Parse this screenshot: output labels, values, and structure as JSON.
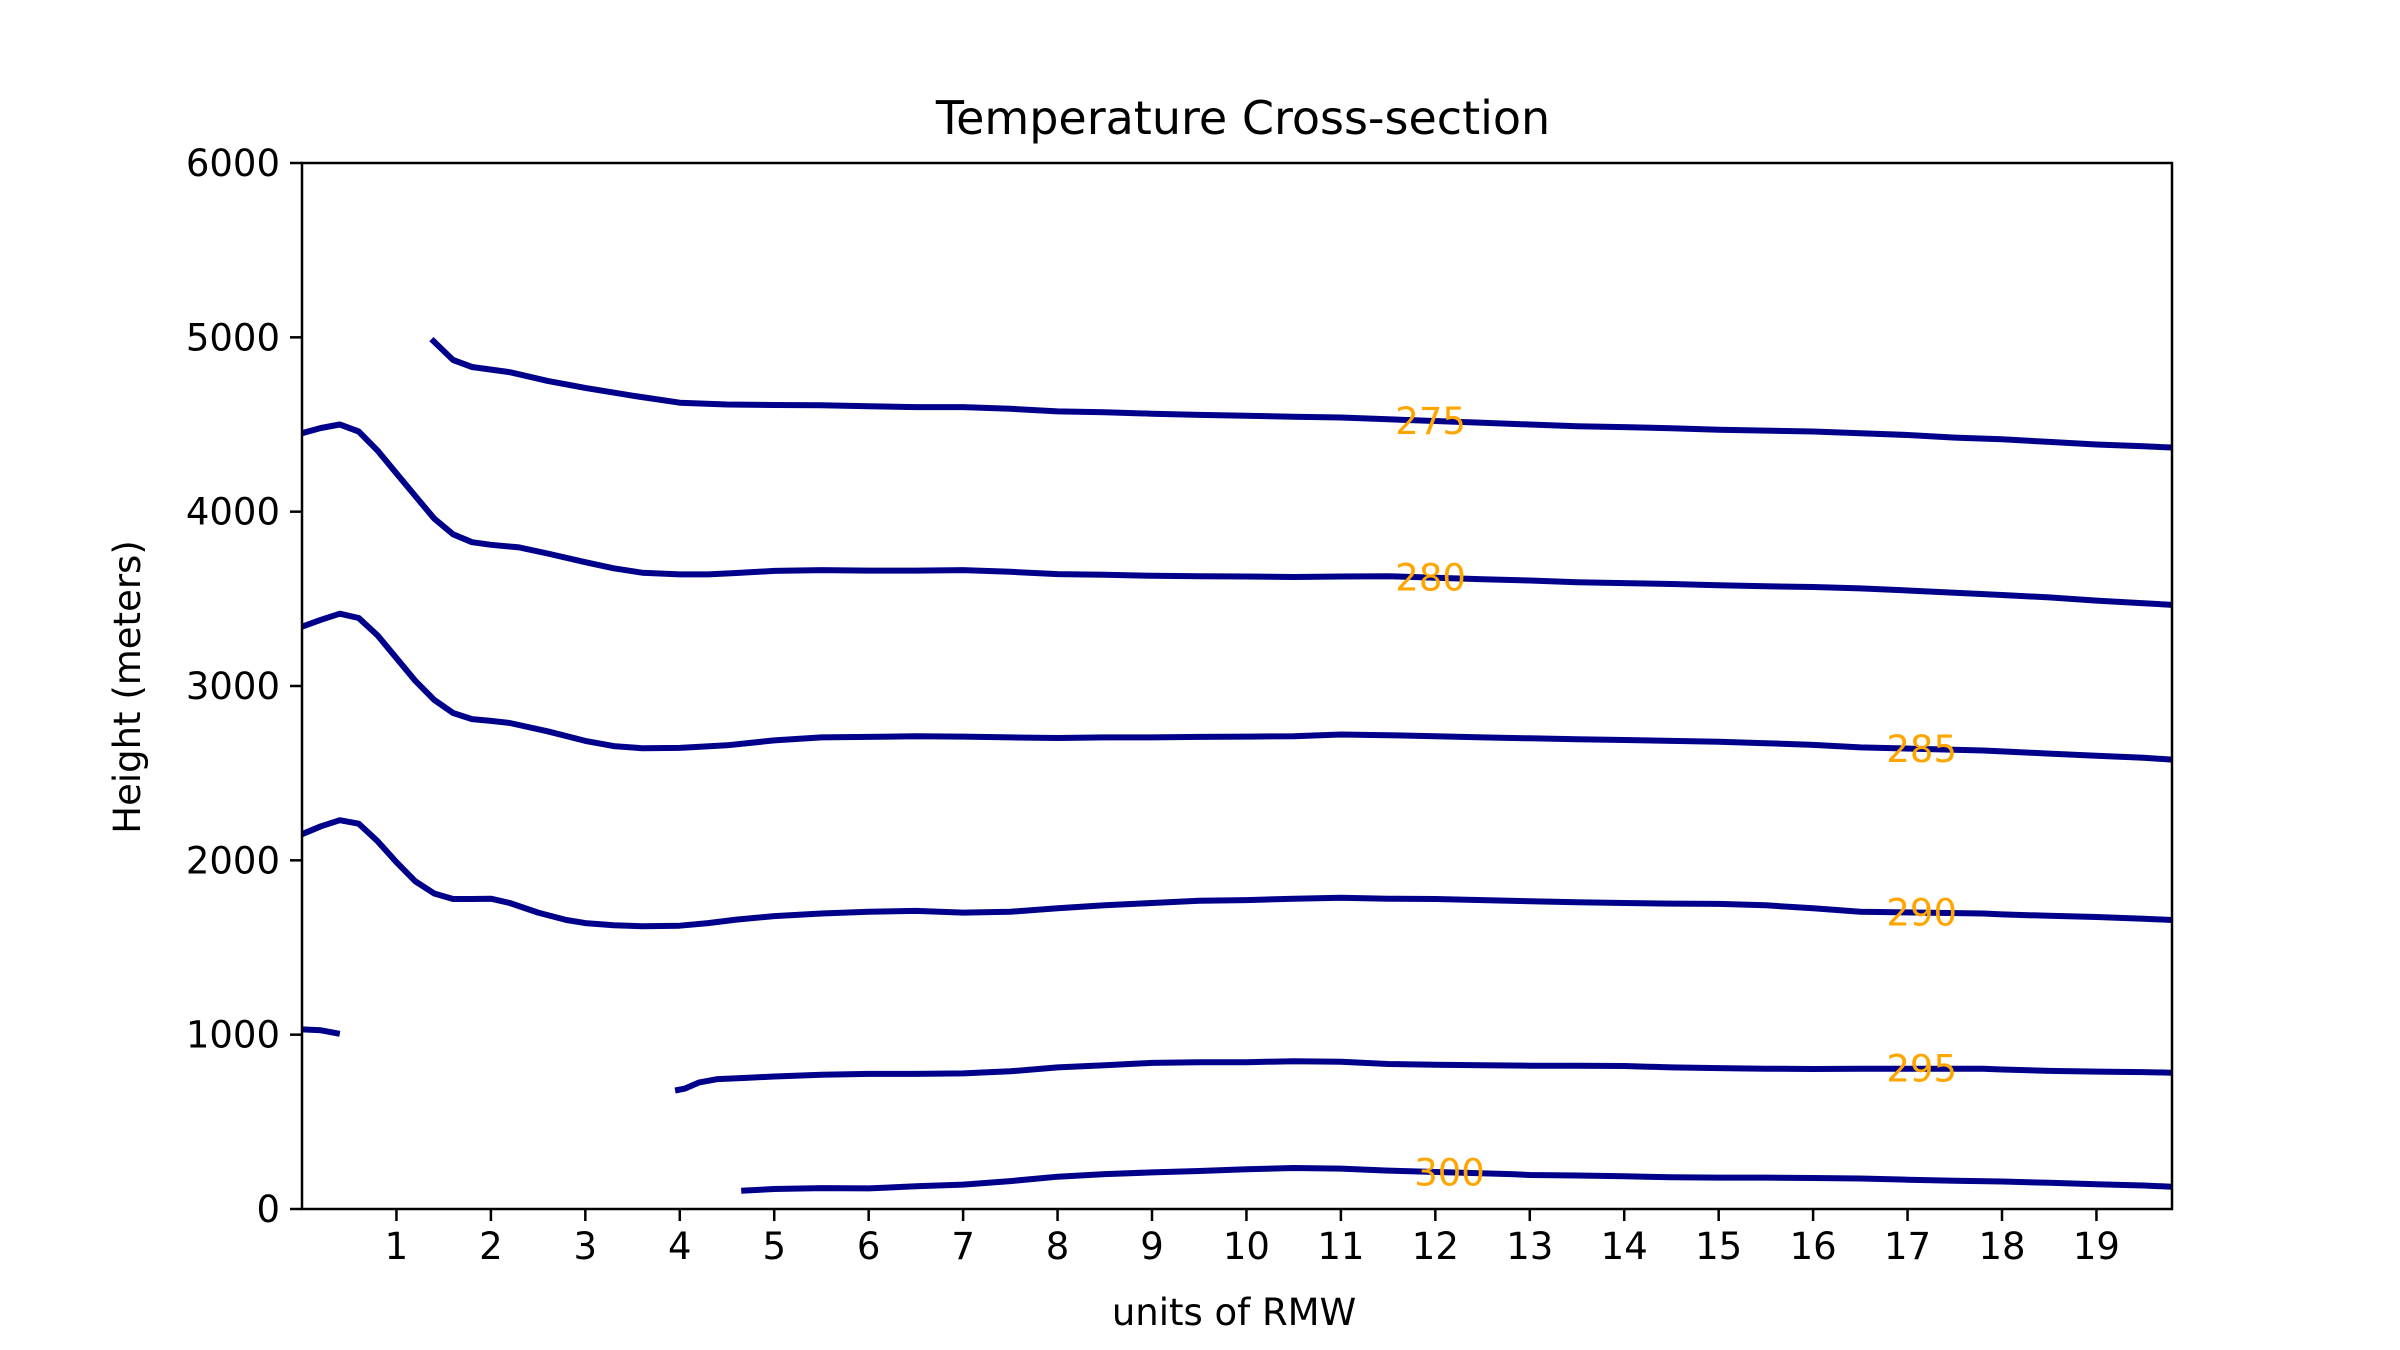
{
  "chart_data": {
    "type": "line",
    "title": "Temperature Cross-section",
    "xlabel": "units of RMW",
    "ylabel": "Height (meters)",
    "xlim": [
      0,
      19.8
    ],
    "ylim": [
      0,
      6000
    ],
    "x_ticks": [
      1,
      2,
      3,
      4,
      5,
      6,
      7,
      8,
      9,
      10,
      11,
      12,
      13,
      14,
      15,
      16,
      17,
      18,
      19
    ],
    "y_ticks": [
      0,
      1000,
      2000,
      3000,
      4000,
      5000,
      6000
    ],
    "grid": false,
    "line_color": "#00008B",
    "label_color": "#FFA500",
    "series": [
      {
        "name": "275",
        "label_at": 11.95,
        "segments": [
          [
            [
              1.37,
              4990
            ],
            [
              1.6,
              4870
            ],
            [
              1.8,
              4830
            ],
            [
              2.2,
              4800
            ],
            [
              2.6,
              4750
            ],
            [
              3.0,
              4710
            ],
            [
              3.5,
              4665
            ],
            [
              4.0,
              4625
            ],
            [
              4.5,
              4615
            ],
            [
              5.0,
              4612
            ],
            [
              5.5,
              4610
            ],
            [
              6.0,
              4605
            ],
            [
              6.5,
              4600
            ],
            [
              7.0,
              4600
            ],
            [
              7.5,
              4590
            ],
            [
              8.0,
              4575
            ],
            [
              8.5,
              4570
            ],
            [
              9.0,
              4562
            ],
            [
              9.5,
              4555
            ],
            [
              10.0,
              4550
            ],
            [
              10.5,
              4545
            ],
            [
              11.0,
              4540
            ],
            [
              11.5,
              4530
            ],
            [
              12.5,
              4510
            ],
            [
              13.0,
              4500
            ],
            [
              13.5,
              4490
            ],
            [
              14.0,
              4485
            ],
            [
              14.5,
              4478
            ],
            [
              15.0,
              4470
            ],
            [
              15.5,
              4465
            ],
            [
              16.0,
              4460
            ],
            [
              16.5,
              4450
            ],
            [
              17.0,
              4440
            ],
            [
              17.5,
              4425
            ],
            [
              18.0,
              4415
            ],
            [
              18.5,
              4400
            ],
            [
              19.0,
              4385
            ],
            [
              19.5,
              4375
            ],
            [
              19.8,
              4368
            ]
          ]
        ]
      },
      {
        "name": "280",
        "label_at": 11.95,
        "segments": [
          [
            [
              0.0,
              4450
            ],
            [
              0.2,
              4480
            ],
            [
              0.4,
              4500
            ],
            [
              0.6,
              4460
            ],
            [
              0.8,
              4350
            ],
            [
              1.0,
              4220
            ],
            [
              1.2,
              4090
            ],
            [
              1.4,
              3960
            ],
            [
              1.6,
              3870
            ],
            [
              1.8,
              3825
            ],
            [
              2.0,
              3810
            ],
            [
              2.3,
              3795
            ],
            [
              2.6,
              3760
            ],
            [
              3.0,
              3710
            ],
            [
              3.3,
              3675
            ],
            [
              3.6,
              3650
            ],
            [
              4.0,
              3640
            ],
            [
              4.3,
              3640
            ],
            [
              4.6,
              3648
            ],
            [
              5.0,
              3660
            ],
            [
              5.5,
              3665
            ],
            [
              6.0,
              3662
            ],
            [
              6.5,
              3662
            ],
            [
              7.0,
              3665
            ],
            [
              7.5,
              3655
            ],
            [
              8.0,
              3642
            ],
            [
              8.5,
              3638
            ],
            [
              9.0,
              3632
            ],
            [
              9.5,
              3630
            ],
            [
              10.0,
              3628
            ],
            [
              10.5,
              3625
            ],
            [
              11.0,
              3628
            ],
            [
              11.5,
              3630
            ],
            [
              12.5,
              3612
            ],
            [
              13.0,
              3605
            ],
            [
              13.5,
              3595
            ],
            [
              14.0,
              3590
            ],
            [
              14.5,
              3585
            ],
            [
              15.0,
              3578
            ],
            [
              15.5,
              3572
            ],
            [
              16.0,
              3568
            ],
            [
              16.5,
              3560
            ],
            [
              17.0,
              3548
            ],
            [
              17.5,
              3535
            ],
            [
              18.0,
              3522
            ],
            [
              18.5,
              3508
            ],
            [
              19.0,
              3490
            ],
            [
              19.5,
              3475
            ],
            [
              19.8,
              3465
            ]
          ]
        ]
      },
      {
        "name": "285",
        "label_at": 17.15,
        "segments": [
          [
            [
              0.0,
              3340
            ],
            [
              0.2,
              3380
            ],
            [
              0.4,
              3415
            ],
            [
              0.6,
              3390
            ],
            [
              0.8,
              3290
            ],
            [
              1.0,
              3160
            ],
            [
              1.2,
              3030
            ],
            [
              1.4,
              2920
            ],
            [
              1.6,
              2845
            ],
            [
              1.8,
              2810
            ],
            [
              2.0,
              2800
            ],
            [
              2.2,
              2788
            ],
            [
              2.6,
              2740
            ],
            [
              3.0,
              2685
            ],
            [
              3.3,
              2655
            ],
            [
              3.6,
              2643
            ],
            [
              4.0,
              2645
            ],
            [
              4.5,
              2660
            ],
            [
              5.0,
              2688
            ],
            [
              5.5,
              2705
            ],
            [
              6.0,
              2708
            ],
            [
              6.5,
              2712
            ],
            [
              7.0,
              2710
            ],
            [
              7.5,
              2705
            ],
            [
              8.0,
              2702
            ],
            [
              8.5,
              2705
            ],
            [
              9.0,
              2705
            ],
            [
              9.5,
              2708
            ],
            [
              10.0,
              2710
            ],
            [
              10.5,
              2712
            ],
            [
              11.0,
              2722
            ],
            [
              11.5,
              2718
            ],
            [
              12.0,
              2712
            ],
            [
              12.5,
              2705
            ],
            [
              13.0,
              2700
            ],
            [
              13.5,
              2695
            ],
            [
              14.0,
              2690
            ],
            [
              14.5,
              2685
            ],
            [
              15.0,
              2680
            ],
            [
              15.5,
              2672
            ],
            [
              16.0,
              2662
            ],
            [
              16.5,
              2648
            ],
            [
              17.8,
              2630
            ],
            [
              18.0,
              2625
            ],
            [
              18.5,
              2612
            ],
            [
              19.0,
              2600
            ],
            [
              19.5,
              2588
            ],
            [
              19.8,
              2578
            ]
          ]
        ]
      },
      {
        "name": "290",
        "label_at": 17.15,
        "segments": [
          [
            [
              0.0,
              2150
            ],
            [
              0.2,
              2195
            ],
            [
              0.4,
              2230
            ],
            [
              0.6,
              2210
            ],
            [
              0.8,
              2110
            ],
            [
              1.0,
              1990
            ],
            [
              1.2,
              1880
            ],
            [
              1.4,
              1810
            ],
            [
              1.6,
              1778
            ],
            [
              1.8,
              1778
            ],
            [
              2.0,
              1780
            ],
            [
              2.2,
              1755
            ],
            [
              2.5,
              1700
            ],
            [
              2.8,
              1658
            ],
            [
              3.0,
              1640
            ],
            [
              3.3,
              1628
            ],
            [
              3.6,
              1622
            ],
            [
              4.0,
              1625
            ],
            [
              4.3,
              1640
            ],
            [
              4.6,
              1660
            ],
            [
              5.0,
              1680
            ],
            [
              5.5,
              1695
            ],
            [
              6.0,
              1705
            ],
            [
              6.5,
              1710
            ],
            [
              7.0,
              1700
            ],
            [
              7.5,
              1705
            ],
            [
              8.0,
              1725
            ],
            [
              8.5,
              1742
            ],
            [
              9.0,
              1755
            ],
            [
              9.5,
              1768
            ],
            [
              10.0,
              1772
            ],
            [
              10.5,
              1780
            ],
            [
              11.0,
              1785
            ],
            [
              11.5,
              1780
            ],
            [
              12.0,
              1778
            ],
            [
              12.5,
              1772
            ],
            [
              13.0,
              1765
            ],
            [
              13.5,
              1760
            ],
            [
              14.0,
              1755
            ],
            [
              14.5,
              1752
            ],
            [
              15.0,
              1750
            ],
            [
              15.5,
              1742
            ],
            [
              16.0,
              1725
            ],
            [
              16.5,
              1705
            ],
            [
              17.8,
              1695
            ],
            [
              18.0,
              1690
            ],
            [
              18.5,
              1682
            ],
            [
              19.0,
              1675
            ],
            [
              19.5,
              1665
            ],
            [
              19.8,
              1658
            ]
          ]
        ]
      },
      {
        "name": "295",
        "label_at": 17.15,
        "segments": [
          [
            [
              0.0,
              1030
            ],
            [
              0.2,
              1025
            ],
            [
              0.4,
              1005
            ]
          ],
          [
            [
              3.95,
              680
            ],
            [
              4.05,
              690
            ],
            [
              4.2,
              725
            ],
            [
              4.4,
              745
            ],
            [
              4.7,
              752
            ],
            [
              5.0,
              760
            ],
            [
              5.5,
              770
            ],
            [
              6.0,
              775
            ],
            [
              6.5,
              775
            ],
            [
              7.0,
              778
            ],
            [
              7.5,
              790
            ],
            [
              8.0,
              812
            ],
            [
              8.5,
              825
            ],
            [
              9.0,
              838
            ],
            [
              9.5,
              842
            ],
            [
              10.0,
              842
            ],
            [
              10.5,
              848
            ],
            [
              11.0,
              845
            ],
            [
              11.5,
              832
            ],
            [
              12.0,
              828
            ],
            [
              12.5,
              825
            ],
            [
              13.0,
              822
            ],
            [
              13.5,
              822
            ],
            [
              14.0,
              820
            ],
            [
              14.5,
              812
            ],
            [
              15.0,
              808
            ],
            [
              15.5,
              805
            ],
            [
              16.0,
              803
            ],
            [
              16.5,
              805
            ],
            [
              17.8,
              805
            ],
            [
              18.0,
              800
            ],
            [
              18.5,
              792
            ],
            [
              19.0,
              788
            ],
            [
              19.5,
              785
            ],
            [
              19.8,
              782
            ]
          ]
        ]
      },
      {
        "name": "300",
        "label_at": 12.15,
        "segments": [
          [
            [
              4.65,
              105
            ],
            [
              5.0,
              115
            ],
            [
              5.5,
              120
            ],
            [
              6.0,
              118
            ],
            [
              6.5,
              130
            ],
            [
              7.0,
              140
            ],
            [
              7.5,
              160
            ],
            [
              8.0,
              185
            ],
            [
              8.5,
              200
            ],
            [
              9.0,
              210
            ],
            [
              9.5,
              218
            ],
            [
              10.0,
              228
            ],
            [
              10.5,
              235
            ],
            [
              11.0,
              232
            ],
            [
              11.5,
              220
            ],
            [
              12.8,
              200
            ],
            [
              13.0,
              195
            ],
            [
              13.5,
              192
            ],
            [
              14.0,
              188
            ],
            [
              14.5,
              182
            ],
            [
              15.0,
              180
            ],
            [
              15.5,
              180
            ],
            [
              16.0,
              178
            ],
            [
              16.5,
              175
            ],
            [
              17.0,
              168
            ],
            [
              17.5,
              162
            ],
            [
              18.0,
              158
            ],
            [
              18.5,
              150
            ],
            [
              19.0,
              142
            ],
            [
              19.5,
              135
            ],
            [
              19.8,
              128
            ]
          ]
        ]
      }
    ]
  }
}
